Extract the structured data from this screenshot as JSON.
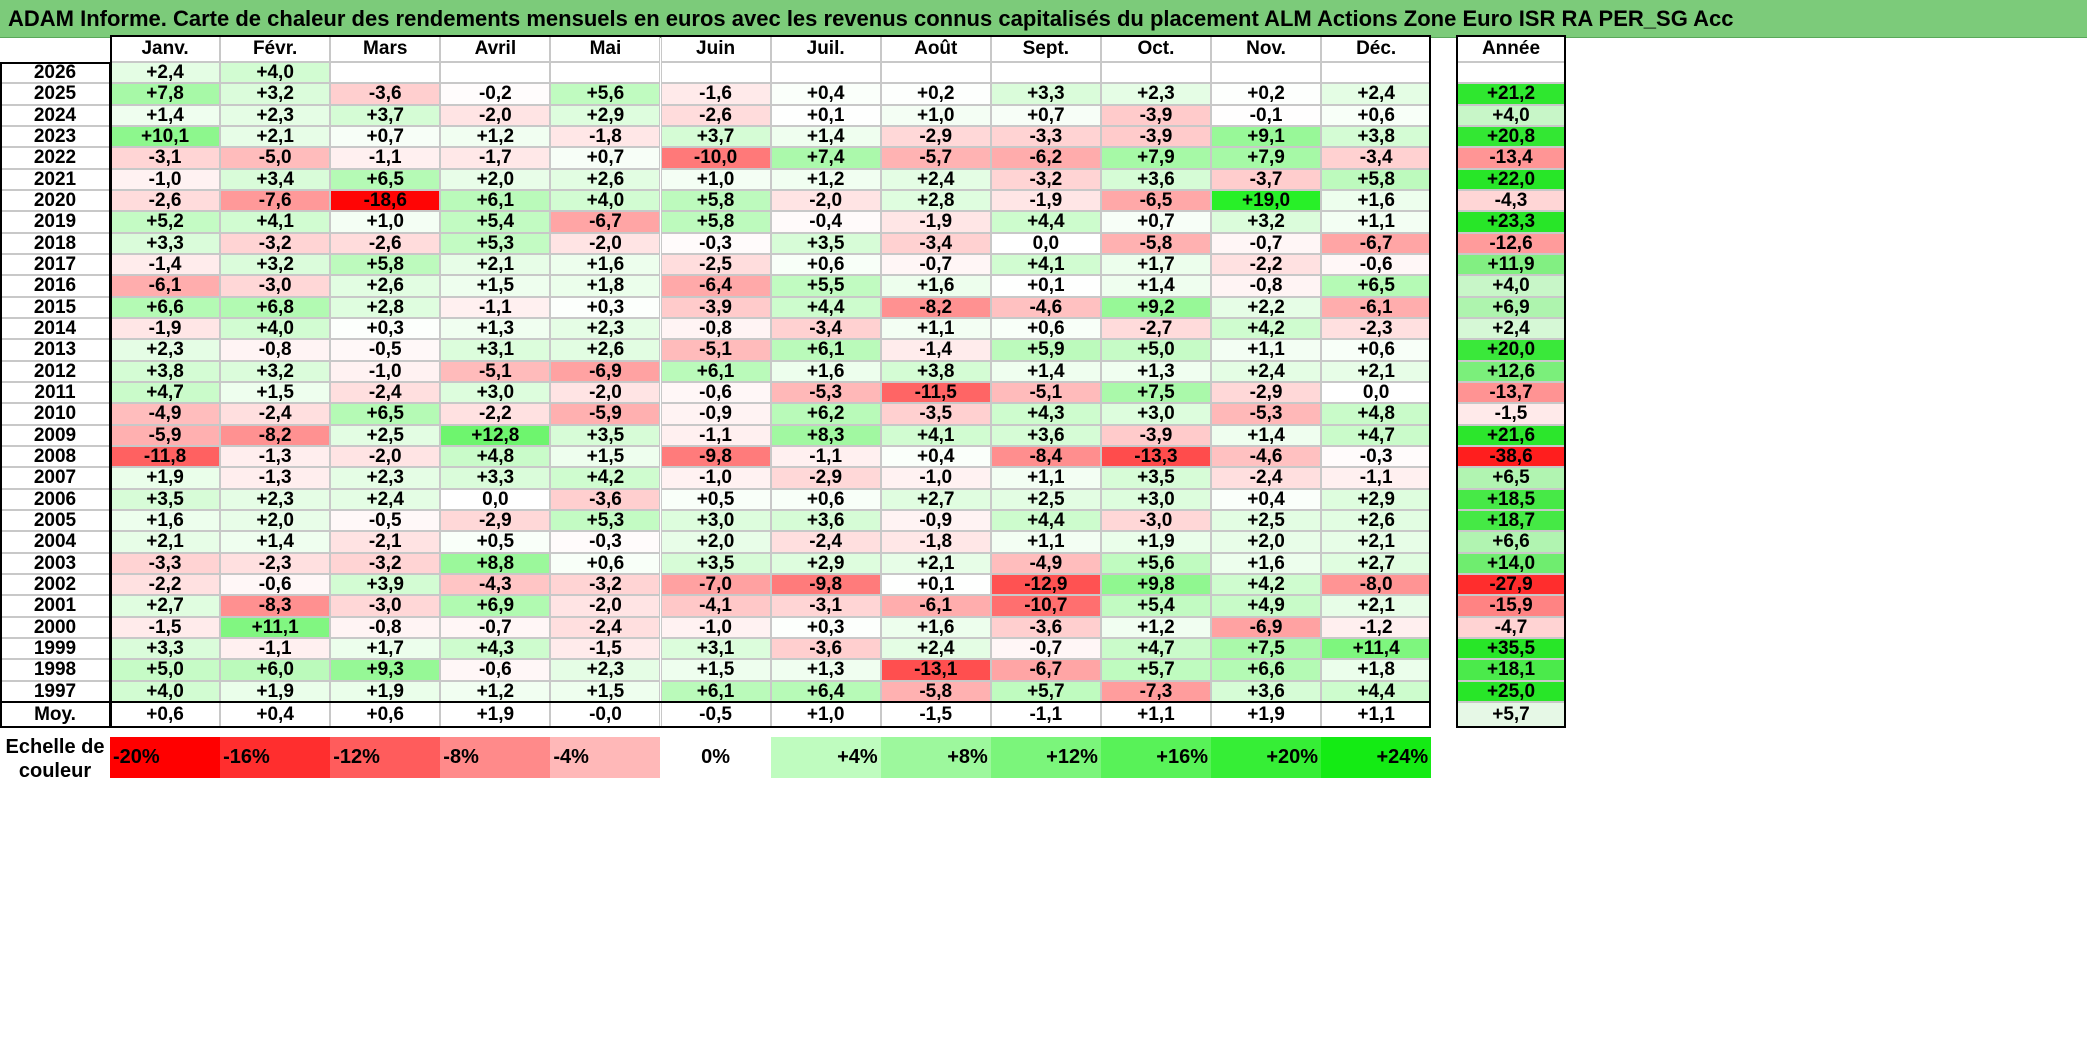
{
  "title": "ADAM Informe. Carte de chaleur des rendements mensuels en euros avec les revenus connus capitalisés du placement ALM Actions Zone Euro ISR RA PER_SG Acc",
  "chart_data": {
    "type": "heatmap",
    "title": "ADAM Informe. Carte de chaleur des rendements mensuels en euros avec les revenus connus capitalisés du placement ALM Actions Zone Euro ISR RA PER_SG Acc",
    "months": [
      "Janv.",
      "Févr.",
      "Mars",
      "Avril",
      "Mai",
      "Juin",
      "Juil.",
      "Août",
      "Sept.",
      "Oct.",
      "Nov.",
      "Déc."
    ],
    "annual_header": "Année",
    "rows": [
      {
        "year": "2026",
        "months": [
          "+2,4",
          "+4,0",
          "",
          "",
          "",
          "",
          "",
          "",
          "",
          "",
          "",
          ""
        ],
        "annual": ""
      },
      {
        "year": "2025",
        "months": [
          "+7,8",
          "+3,2",
          "-3,6",
          "-0,2",
          "+5,6",
          "-1,6",
          "+0,4",
          "+0,2",
          "+3,3",
          "+2,3",
          "+0,2",
          "+2,4"
        ],
        "annual": "+21,2"
      },
      {
        "year": "2024",
        "months": [
          "+1,4",
          "+2,3",
          "+3,7",
          "-2,0",
          "+2,9",
          "-2,6",
          "+0,1",
          "+1,0",
          "+0,7",
          "-3,9",
          "-0,1",
          "+0,6"
        ],
        "annual": "+4,0"
      },
      {
        "year": "2023",
        "months": [
          "+10,1",
          "+2,1",
          "+0,7",
          "+1,2",
          "-1,8",
          "+3,7",
          "+1,4",
          "-2,9",
          "-3,3",
          "-3,9",
          "+9,1",
          "+3,8"
        ],
        "annual": "+20,8"
      },
      {
        "year": "2022",
        "months": [
          "-3,1",
          "-5,0",
          "-1,1",
          "-1,7",
          "+0,7",
          "-10,0",
          "+7,4",
          "-5,7",
          "-6,2",
          "+7,9",
          "+7,9",
          "-3,4"
        ],
        "annual": "-13,4"
      },
      {
        "year": "2021",
        "months": [
          "-1,0",
          "+3,4",
          "+6,5",
          "+2,0",
          "+2,6",
          "+1,0",
          "+1,2",
          "+2,4",
          "-3,2",
          "+3,6",
          "-3,7",
          "+5,8"
        ],
        "annual": "+22,0"
      },
      {
        "year": "2020",
        "months": [
          "-2,6",
          "-7,6",
          "-18,6",
          "+6,1",
          "+4,0",
          "+5,8",
          "-2,0",
          "+2,8",
          "-1,9",
          "-6,5",
          "+19,0",
          "+1,6"
        ],
        "annual": "-4,3"
      },
      {
        "year": "2019",
        "months": [
          "+5,2",
          "+4,1",
          "+1,0",
          "+5,4",
          "-6,7",
          "+5,8",
          "-0,4",
          "-1,9",
          "+4,4",
          "+0,7",
          "+3,2",
          "+1,1"
        ],
        "annual": "+23,3"
      },
      {
        "year": "2018",
        "months": [
          "+3,3",
          "-3,2",
          "-2,6",
          "+5,3",
          "-2,0",
          "-0,3",
          "+3,5",
          "-3,4",
          "0,0",
          "-5,8",
          "-0,7",
          "-6,7"
        ],
        "annual": "-12,6"
      },
      {
        "year": "2017",
        "months": [
          "-1,4",
          "+3,2",
          "+5,8",
          "+2,1",
          "+1,6",
          "-2,5",
          "+0,6",
          "-0,7",
          "+4,1",
          "+1,7",
          "-2,2",
          "-0,6"
        ],
        "annual": "+11,9"
      },
      {
        "year": "2016",
        "months": [
          "-6,1",
          "-3,0",
          "+2,6",
          "+1,5",
          "+1,8",
          "-6,4",
          "+5,5",
          "+1,6",
          "+0,1",
          "+1,4",
          "-0,8",
          "+6,5"
        ],
        "annual": "+4,0"
      },
      {
        "year": "2015",
        "months": [
          "+6,6",
          "+6,8",
          "+2,8",
          "-1,1",
          "+0,3",
          "-3,9",
          "+4,4",
          "-8,2",
          "-4,6",
          "+9,2",
          "+2,2",
          "-6,1"
        ],
        "annual": "+6,9"
      },
      {
        "year": "2014",
        "months": [
          "-1,9",
          "+4,0",
          "+0,3",
          "+1,3",
          "+2,3",
          "-0,8",
          "-3,4",
          "+1,1",
          "+0,6",
          "-2,7",
          "+4,2",
          "-2,3"
        ],
        "annual": "+2,4"
      },
      {
        "year": "2013",
        "months": [
          "+2,3",
          "-0,8",
          "-0,5",
          "+3,1",
          "+2,6",
          "-5,1",
          "+6,1",
          "-1,4",
          "+5,9",
          "+5,0",
          "+1,1",
          "+0,6"
        ],
        "annual": "+20,0"
      },
      {
        "year": "2012",
        "months": [
          "+3,8",
          "+3,2",
          "-1,0",
          "-5,1",
          "-6,9",
          "+6,1",
          "+1,6",
          "+3,8",
          "+1,4",
          "+1,3",
          "+2,4",
          "+2,1"
        ],
        "annual": "+12,6"
      },
      {
        "year": "2011",
        "months": [
          "+4,7",
          "+1,5",
          "-2,4",
          "+3,0",
          "-2,0",
          "-0,6",
          "-5,3",
          "-11,5",
          "-5,1",
          "+7,5",
          "-2,9",
          "0,0"
        ],
        "annual": "-13,7"
      },
      {
        "year": "2010",
        "months": [
          "-4,9",
          "-2,4",
          "+6,5",
          "-2,2",
          "-5,9",
          "-0,9",
          "+6,2",
          "-3,5",
          "+4,3",
          "+3,0",
          "-5,3",
          "+4,8"
        ],
        "annual": "-1,5"
      },
      {
        "year": "2009",
        "months": [
          "-5,9",
          "-8,2",
          "+2,5",
          "+12,8",
          "+3,5",
          "-1,1",
          "+8,3",
          "+4,1",
          "+3,6",
          "-3,9",
          "+1,4",
          "+4,7"
        ],
        "annual": "+21,6"
      },
      {
        "year": "2008",
        "months": [
          "-11,8",
          "-1,3",
          "-2,0",
          "+4,8",
          "+1,5",
          "-9,8",
          "-1,1",
          "+0,4",
          "-8,4",
          "-13,3",
          "-4,6",
          "-0,3"
        ],
        "annual": "-38,6"
      },
      {
        "year": "2007",
        "months": [
          "+1,9",
          "-1,3",
          "+2,3",
          "+3,3",
          "+4,2",
          "-1,0",
          "-2,9",
          "-1,0",
          "+1,1",
          "+3,5",
          "-2,4",
          "-1,1"
        ],
        "annual": "+6,5"
      },
      {
        "year": "2006",
        "months": [
          "+3,5",
          "+2,3",
          "+2,4",
          "0,0",
          "-3,6",
          "+0,5",
          "+0,6",
          "+2,7",
          "+2,5",
          "+3,0",
          "+0,4",
          "+2,9"
        ],
        "annual": "+18,5"
      },
      {
        "year": "2005",
        "months": [
          "+1,6",
          "+2,0",
          "-0,5",
          "-2,9",
          "+5,3",
          "+3,0",
          "+3,6",
          "-0,9",
          "+4,4",
          "-3,0",
          "+2,5",
          "+2,6"
        ],
        "annual": "+18,7"
      },
      {
        "year": "2004",
        "months": [
          "+2,1",
          "+1,4",
          "-2,1",
          "+0,5",
          "-0,3",
          "+2,0",
          "-2,4",
          "-1,8",
          "+1,1",
          "+1,9",
          "+2,0",
          "+2,1"
        ],
        "annual": "+6,6"
      },
      {
        "year": "2003",
        "months": [
          "-3,3",
          "-2,3",
          "-3,2",
          "+8,8",
          "+0,6",
          "+3,5",
          "+2,9",
          "+2,1",
          "-4,9",
          "+5,6",
          "+1,6",
          "+2,7"
        ],
        "annual": "+14,0"
      },
      {
        "year": "2002",
        "months": [
          "-2,2",
          "-0,6",
          "+3,9",
          "-4,3",
          "-3,2",
          "-7,0",
          "-9,8",
          "+0,1",
          "-12,9",
          "+9,8",
          "+4,2",
          "-8,0"
        ],
        "annual": "-27,9"
      },
      {
        "year": "2001",
        "months": [
          "+2,7",
          "-8,3",
          "-3,0",
          "+6,9",
          "-2,0",
          "-4,1",
          "-3,1",
          "-6,1",
          "-10,7",
          "+5,4",
          "+4,9",
          "+2,1"
        ],
        "annual": "-15,9"
      },
      {
        "year": "2000",
        "months": [
          "-1,5",
          "+11,1",
          "-0,8",
          "-0,7",
          "-2,4",
          "-1,0",
          "+0,3",
          "+1,6",
          "-3,6",
          "+1,2",
          "-6,9",
          "-1,2"
        ],
        "annual": "-4,7"
      },
      {
        "year": "1999",
        "months": [
          "+3,3",
          "-1,1",
          "+1,7",
          "+4,3",
          "-1,5",
          "+3,1",
          "-3,6",
          "+2,4",
          "-0,7",
          "+4,7",
          "+7,5",
          "+11,4"
        ],
        "annual": "+35,5"
      },
      {
        "year": "1998",
        "months": [
          "+5,0",
          "+6,0",
          "+9,3",
          "-0,6",
          "+2,3",
          "+1,5",
          "+1,3",
          "-13,1",
          "-6,7",
          "+5,7",
          "+6,6",
          "+1,8"
        ],
        "annual": "+18,1"
      },
      {
        "year": "1997",
        "months": [
          "+4,0",
          "+1,9",
          "+1,9",
          "+1,2",
          "+1,5",
          "+6,1",
          "+6,4",
          "-5,8",
          "+5,7",
          "-7,3",
          "+3,6",
          "+4,4"
        ],
        "annual": "+25,0"
      }
    ],
    "average": {
      "label": "Moy.",
      "months": [
        "+0,6",
        "+0,4",
        "+0,6",
        "+1,9",
        "-0,0",
        "-0,5",
        "+1,0",
        "-1,5",
        "-1,1",
        "+1,1",
        "+1,9",
        "+1,1"
      ],
      "annual": "+5,7"
    },
    "color_scale": {
      "label_line1": "Echelle de",
      "label_line2": "couleur",
      "steps": [
        {
          "label": "-20%",
          "value": -20
        },
        {
          "label": "-16%",
          "value": -16
        },
        {
          "label": "-12%",
          "value": -12
        },
        {
          "label": "-8%",
          "value": -8
        },
        {
          "label": "-4%",
          "value": -4
        },
        {
          "label": "0%",
          "value": 0
        },
        {
          "label": "+4%",
          "value": 4
        },
        {
          "label": "+8%",
          "value": 8
        },
        {
          "label": "+12%",
          "value": 12
        },
        {
          "label": "+16%",
          "value": 16
        },
        {
          "label": "+20%",
          "value": 20
        },
        {
          "label": "+24%",
          "value": 24
        }
      ]
    },
    "colors": {
      "negative": "#ff0000",
      "zero": "#ffffff",
      "positive": "#00ee00",
      "title_bg": "#7ccb7a"
    }
  }
}
